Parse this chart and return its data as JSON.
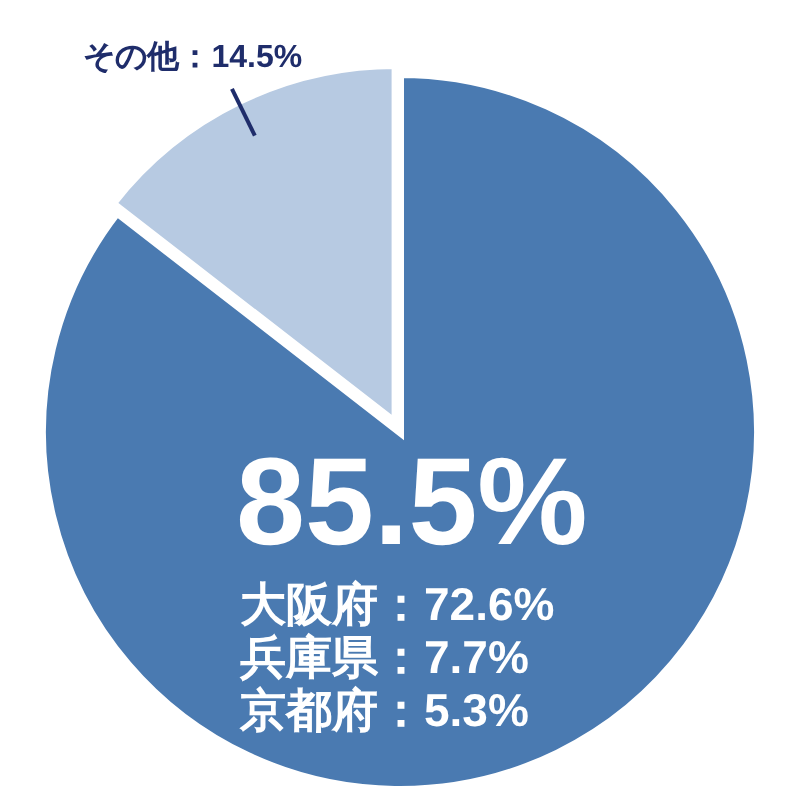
{
  "chart_data": {
    "type": "pie",
    "categories": [
      null,
      "その他"
    ],
    "values": [
      85.5,
      14.5
    ],
    "colors": [
      "#4a7ab1",
      "#b7cae2"
    ],
    "value_labels": [
      "85.5%",
      "：14.5%"
    ],
    "annotations": [
      "大阪府：72.6%",
      "兵庫県：7.7%",
      "京都府：5.3%"
    ]
  }
}
